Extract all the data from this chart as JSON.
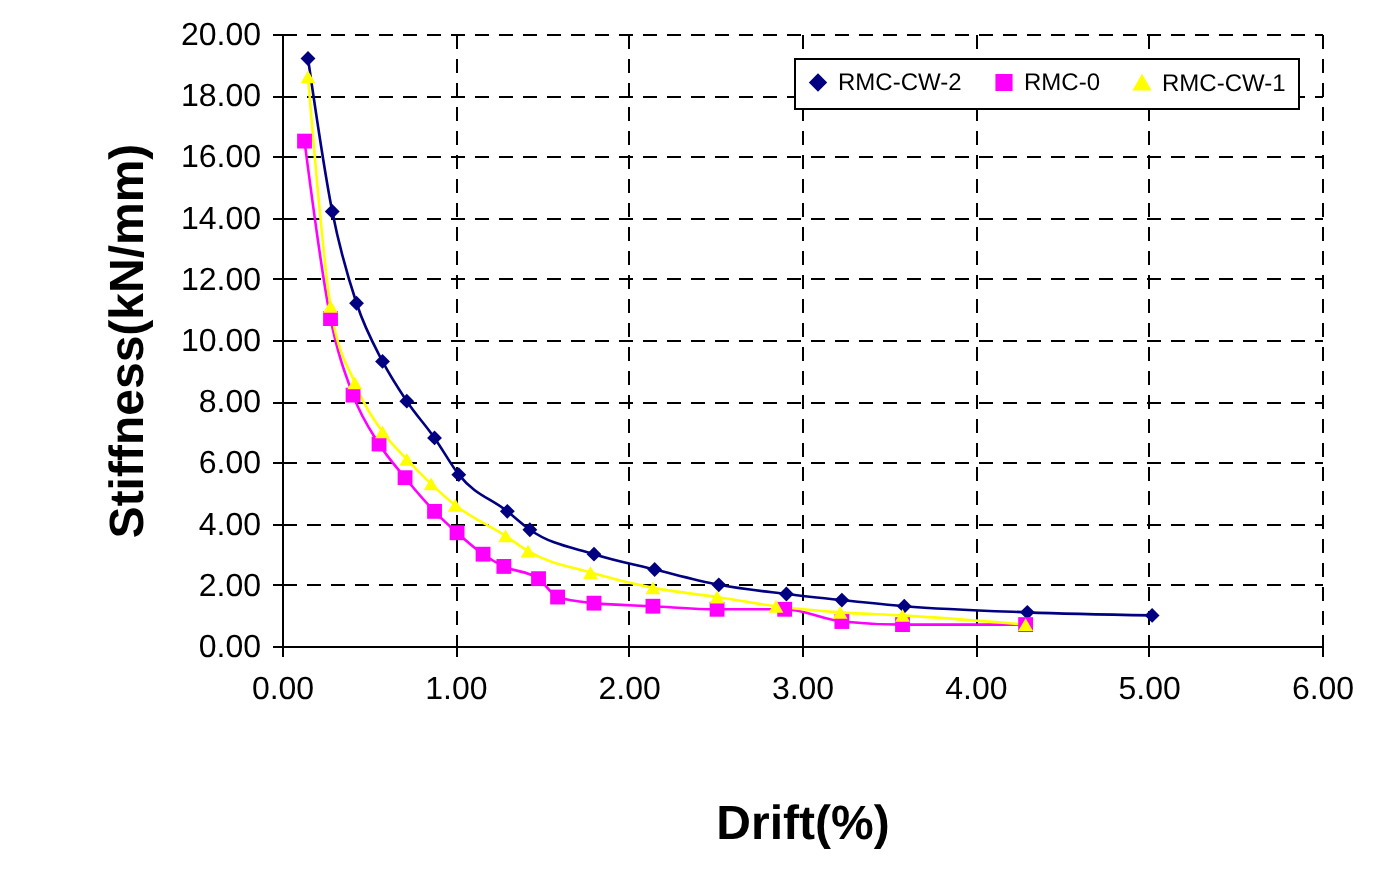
{
  "chart_data": {
    "type": "line",
    "xlabel": "Drift(%)",
    "ylabel": "Stiffness(kN/mm)",
    "xlim": [
      0,
      6
    ],
    "ylim": [
      0,
      20
    ],
    "xticks": [
      {
        "value": 0,
        "label": "0.00"
      },
      {
        "value": 1,
        "label": "1.00"
      },
      {
        "value": 2,
        "label": "2.00"
      },
      {
        "value": 3,
        "label": "3.00"
      },
      {
        "value": 4,
        "label": "4.00"
      },
      {
        "value": 5,
        "label": "5.00"
      },
      {
        "value": 6,
        "label": "6.00"
      }
    ],
    "yticks": [
      {
        "value": 0,
        "label": "0.00"
      },
      {
        "value": 2,
        "label": "2.00"
      },
      {
        "value": 4,
        "label": "4.00"
      },
      {
        "value": 6,
        "label": "6.00"
      },
      {
        "value": 8,
        "label": "8.00"
      },
      {
        "value": 10,
        "label": "10.00"
      },
      {
        "value": 12,
        "label": "12.00"
      },
      {
        "value": 14,
        "label": "14.00"
      },
      {
        "value": 16,
        "label": "16.00"
      },
      {
        "value": 18,
        "label": "18.00"
      },
      {
        "value": 20,
        "label": "20.00"
      }
    ],
    "grid": true,
    "legend": "top right",
    "line_style": "solid",
    "series": [
      {
        "name": "RMC-CW-2",
        "color": "#000080",
        "marker": "diamond",
        "x": [
          0.15,
          0.29,
          0.43,
          0.58,
          0.72,
          0.88,
          1.02,
          1.3,
          1.43,
          1.8,
          2.15,
          2.52,
          2.91,
          3.23,
          3.59,
          4.3,
          5.02
        ],
        "values": [
          19.2,
          14.2,
          11.2,
          9.3,
          8.0,
          6.8,
          5.6,
          4.4,
          3.8,
          3.0,
          2.5,
          2.0,
          1.7,
          1.5,
          1.3,
          1.1,
          1.0
        ]
      },
      {
        "name": "RMC-0",
        "color": "#ff00ff",
        "marker": "square",
        "x": [
          0.13,
          0.28,
          0.41,
          0.56,
          0.71,
          0.88,
          1.01,
          1.16,
          1.28,
          1.48,
          1.59,
          1.8,
          2.14,
          2.51,
          2.9,
          3.23,
          3.58,
          4.29
        ],
        "values": [
          16.5,
          10.7,
          8.2,
          6.6,
          5.5,
          4.4,
          3.7,
          3.0,
          2.6,
          2.2,
          1.6,
          1.4,
          1.3,
          1.2,
          1.2,
          0.8,
          0.7,
          0.7
        ]
      },
      {
        "name": "RMC-CW-1",
        "color": "#ffff00",
        "marker": "triangle",
        "x": [
          0.15,
          0.28,
          0.42,
          0.58,
          0.72,
          0.86,
          1.0,
          1.29,
          1.42,
          1.78,
          2.14,
          2.51,
          2.85,
          3.22,
          3.58,
          4.29
        ],
        "values": [
          18.6,
          11.1,
          8.6,
          7.0,
          6.1,
          5.3,
          4.6,
          3.6,
          3.1,
          2.4,
          1.9,
          1.6,
          1.3,
          1.1,
          1.0,
          0.7
        ]
      }
    ]
  }
}
